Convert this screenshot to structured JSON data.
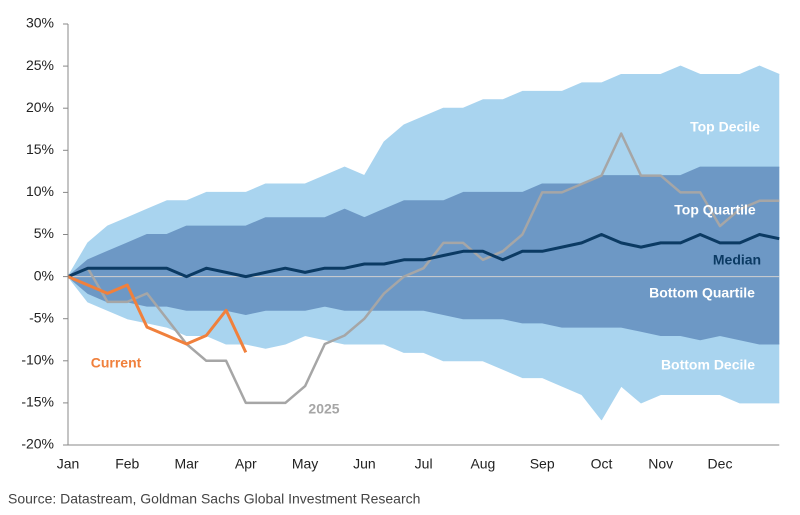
{
  "chart_data": {
    "type": "line",
    "source": "Source: Datastream, Goldman Sachs Global Investment Research",
    "categories": [
      "Jan",
      null,
      null,
      "Feb",
      null,
      null,
      "Mar",
      null,
      null,
      "Apr",
      null,
      null,
      "May",
      null,
      null,
      "Jun",
      null,
      null,
      "Jul",
      null,
      null,
      "Aug",
      null,
      null,
      "Sep",
      null,
      null,
      "Oct",
      null,
      null,
      "Nov",
      null,
      null,
      "Dec",
      null,
      null,
      null
    ],
    "ylim": [
      -20,
      30
    ],
    "yticks": [
      {
        "value": -20,
        "label": "-20%"
      },
      {
        "value": -15,
        "label": "-15%"
      },
      {
        "value": -10,
        "label": "-10%"
      },
      {
        "value": -5,
        "label": "-5%"
      },
      {
        "value": 0,
        "label": "0%"
      },
      {
        "value": 5,
        "label": "5%"
      },
      {
        "value": 10,
        "label": "10%"
      },
      {
        "value": 15,
        "label": "15%"
      },
      {
        "value": 20,
        "label": "20%"
      },
      {
        "value": 25,
        "label": "25%"
      },
      {
        "value": 30,
        "label": "30%"
      }
    ],
    "series": [
      {
        "name": "Top Decile",
        "color": "#a9d4ef",
        "values": [
          0,
          4,
          6,
          7,
          8,
          9,
          9,
          10,
          10,
          10,
          11,
          11,
          11,
          12,
          13,
          12,
          16,
          18,
          19,
          20,
          20,
          21,
          21,
          22,
          22,
          22,
          23,
          23,
          24,
          24,
          24,
          25,
          24,
          24,
          24,
          25,
          24
        ]
      },
      {
        "name": "Top Quartile",
        "color": "#6d98c5",
        "values": [
          0,
          2,
          3,
          4,
          5,
          5,
          6,
          6,
          6,
          6,
          7,
          7,
          7,
          7,
          8,
          7,
          8,
          9,
          9,
          9,
          10,
          10,
          10,
          10,
          11,
          11,
          11,
          12,
          12,
          12,
          12,
          12,
          13,
          13,
          13,
          13,
          13
        ]
      },
      {
        "name": "Median",
        "color": "#0b3a63",
        "values": [
          0,
          1,
          1,
          1,
          1,
          1,
          0,
          1,
          0.5,
          0,
          0.5,
          1,
          0.5,
          1,
          1,
          1.5,
          1.5,
          2,
          2,
          2.5,
          3,
          3,
          2,
          3,
          3,
          3.5,
          4,
          5,
          4,
          3.5,
          4,
          4,
          5,
          4,
          4,
          5,
          4.5
        ]
      },
      {
        "name": "Bottom Quartile",
        "color": "#6d98c5",
        "values": [
          0,
          -2,
          -3,
          -3,
          -3.5,
          -3.5,
          -4,
          -4,
          -4,
          -4.5,
          -4,
          -4,
          -4,
          -3.5,
          -4,
          -4,
          -4,
          -4,
          -4,
          -4.5,
          -5,
          -5,
          -5,
          -5.5,
          -5.5,
          -6,
          -6,
          -6,
          -6,
          -6.5,
          -7,
          -7,
          -7.5,
          -7,
          -7.5,
          -8,
          -8
        ]
      },
      {
        "name": "Bottom Decile",
        "color": "#a9d4ef",
        "values": [
          0,
          -3,
          -4,
          -5,
          -5.5,
          -6,
          -7,
          -7,
          -8,
          -8,
          -8.5,
          -8,
          -7,
          -7.5,
          -8,
          -8,
          -8,
          -9,
          -9,
          -10,
          -10,
          -10,
          -11,
          -12,
          -12,
          -13,
          -14,
          -17,
          -13,
          -15,
          -14,
          -14,
          -14,
          -14,
          -15,
          -15,
          -15
        ]
      },
      {
        "name": "Current",
        "color": "#f0803c",
        "values": [
          0,
          -1,
          -2,
          -1,
          -6,
          -7,
          -8,
          -7,
          -4,
          -9,
          null,
          null,
          null,
          null,
          null,
          null,
          null,
          null,
          null,
          null,
          null,
          null,
          null,
          null,
          null,
          null,
          null,
          null,
          null,
          null,
          null,
          null,
          null,
          null,
          null,
          null,
          null
        ]
      },
      {
        "name": "2025",
        "color": "#a6a6a6",
        "values": [
          0,
          1,
          -3,
          -3,
          -2,
          -5,
          -8,
          -10,
          -10,
          -15,
          -15,
          -15,
          -13,
          -8,
          -7,
          -5,
          -2,
          0,
          1,
          4,
          4,
          2,
          3,
          5,
          10,
          10,
          11,
          12,
          17,
          12,
          12,
          10,
          10,
          6,
          8,
          9,
          9
        ]
      }
    ]
  }
}
